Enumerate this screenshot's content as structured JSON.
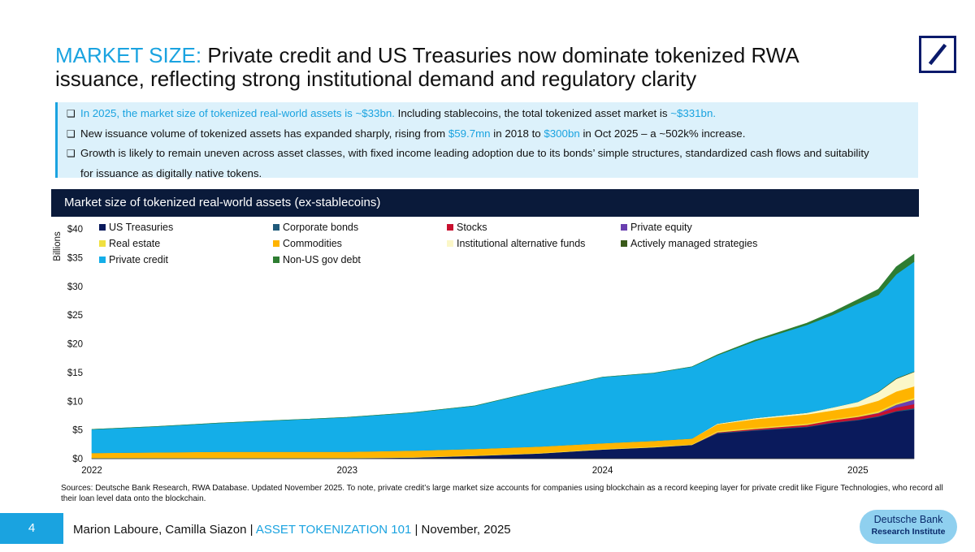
{
  "header": {
    "title_highlight": "MARKET SIZE:",
    "title_rest": " Private credit and US Treasuries now dominate tokenized RWA issuance, reflecting strong institutional demand and regulatory clarity"
  },
  "bullets": {
    "b1_blue": "In 2025, the market size of tokenized real-world assets is ~$33bn.",
    "b1_text": " Including stablecoins, the total tokenized asset market is ",
    "b1_value": "~$331bn.",
    "b2_pre": "New issuance volume of tokenized assets has expanded sharply, rising from ",
    "b2_v1": "$59.7mn",
    "b2_mid": " in 2018 to ",
    "b2_v2": "$300bn",
    "b2_post": " in Oct 2025 – a ~502k% increase.",
    "b3_line1": "Growth is likely to remain uneven across asset classes, with fixed income leading adoption due to its bonds’ simple structures, standardized cash flows and suitability",
    "b3_line2": "for issuance as digitally native tokens."
  },
  "chart_header": "Market size of tokenized real-world assets (ex-stablecoins)",
  "sources": "Sources: Deutsche Bank Research, RWA Database. Updated November 2025. To note, private credit’s large market size accounts for companies using blockchain as a record keeping layer for private credit like Figure Technologies, who record all their loan level data onto the blockchain.",
  "footer": {
    "page_number": "4",
    "authors": "Marion Laboure, Camilla Siazon | ",
    "series": "ASSET TOKENIZATION 101",
    "date": " |  November, 2025",
    "badge_line1": "Deutsche Bank",
    "badge_line2": "Research Institute"
  },
  "colors": {
    "accent": "#1aa3e0",
    "navy": "#0a1a3a"
  },
  "chart_data": {
    "type": "area",
    "stacked": true,
    "title": "Market size of tokenized real-world assets (ex-stablecoins)",
    "ylabel": "Billions",
    "xlabel": "",
    "ylim": [
      0,
      40
    ],
    "yticks": [
      "$0",
      "$5",
      "$10",
      "$15",
      "$20",
      "$25",
      "$30",
      "$35",
      "$40"
    ],
    "xlim": [
      2022.0,
      2025.22
    ],
    "xticks": [
      {
        "label": "2022",
        "value": 2022.0
      },
      {
        "label": "2023",
        "value": 2023.0
      },
      {
        "label": "2024",
        "value": 2024.0
      },
      {
        "label": "2025",
        "value": 2025.0
      }
    ],
    "legend_position": "top",
    "x": [
      2022.0,
      2022.25,
      2022.5,
      2022.75,
      2023.0,
      2023.25,
      2023.5,
      2023.75,
      2024.0,
      2024.2,
      2024.35,
      2024.45,
      2024.6,
      2024.8,
      2024.9,
      2025.0,
      2025.08,
      2025.15,
      2025.22
    ],
    "series": [
      {
        "name": "US Treasuries",
        "color": "#0a1a5c",
        "values": [
          0.1,
          0.1,
          0.1,
          0.1,
          0.1,
          0.2,
          0.5,
          0.9,
          1.6,
          2.0,
          2.4,
          4.4,
          4.9,
          5.5,
          6.2,
          6.7,
          7.3,
          8.2,
          8.6
        ]
      },
      {
        "name": "Corporate bonds",
        "color": "#1f5a7a",
        "values": [
          0,
          0,
          0,
          0,
          0,
          0,
          0,
          0,
          0,
          0,
          0,
          0.1,
          0.1,
          0.1,
          0.1,
          0.1,
          0.1,
          0.1,
          0.2
        ]
      },
      {
        "name": "Stocks",
        "color": "#c8102e",
        "values": [
          0,
          0,
          0,
          0,
          0,
          0,
          0,
          0,
          0,
          0,
          0,
          0.1,
          0.2,
          0.3,
          0.4,
          0.5,
          0.5,
          0.6,
          0.7
        ]
      },
      {
        "name": "Private equity",
        "color": "#6a3fb0",
        "values": [
          0,
          0,
          0,
          0,
          0,
          0,
          0,
          0,
          0,
          0,
          0,
          0,
          0,
          0,
          0,
          0,
          0.1,
          0.5,
          0.8
        ]
      },
      {
        "name": "Real estate",
        "color": "#f0e040",
        "values": [
          0.1,
          0.1,
          0.1,
          0.1,
          0.1,
          0.1,
          0.1,
          0.1,
          0.1,
          0.1,
          0.1,
          0.2,
          0.2,
          0.2,
          0.2,
          0.2,
          0.3,
          0.3,
          0.3
        ]
      },
      {
        "name": "Commodities",
        "color": "#ffb400",
        "values": [
          0.8,
          0.9,
          1.0,
          1.0,
          1.0,
          1.1,
          1.1,
          1.1,
          1.0,
          1.0,
          1.0,
          1.2,
          1.5,
          1.6,
          1.5,
          1.6,
          1.8,
          2.0,
          2.0
        ]
      },
      {
        "name": "Institutional alternative funds",
        "color": "#fbf7c8",
        "values": [
          0,
          0,
          0,
          0,
          0,
          0,
          0,
          0,
          0,
          0,
          0,
          0.1,
          0.2,
          0.3,
          0.5,
          0.8,
          1.5,
          2.2,
          2.5
        ]
      },
      {
        "name": "Actively managed strategies",
        "color": "#3a5a1a",
        "values": [
          0,
          0,
          0,
          0,
          0,
          0,
          0,
          0,
          0,
          0,
          0,
          0,
          0,
          0,
          0,
          0,
          0.1,
          0.1,
          0.1
        ]
      },
      {
        "name": "Private credit",
        "color": "#14aee8",
        "values": [
          4.1,
          4.5,
          5.0,
          5.5,
          6.0,
          6.6,
          7.5,
          9.7,
          11.5,
          11.8,
          12.5,
          11.9,
          13.4,
          15.3,
          16.1,
          17.1,
          16.8,
          18.1,
          19.1
        ]
      },
      {
        "name": "Non-US gov debt",
        "color": "#2e7d32",
        "values": [
          0,
          0,
          0,
          0,
          0,
          0,
          0,
          0,
          0,
          0,
          0,
          0.1,
          0.2,
          0.3,
          0.5,
          0.7,
          1.0,
          1.3,
          1.3
        ]
      }
    ]
  }
}
